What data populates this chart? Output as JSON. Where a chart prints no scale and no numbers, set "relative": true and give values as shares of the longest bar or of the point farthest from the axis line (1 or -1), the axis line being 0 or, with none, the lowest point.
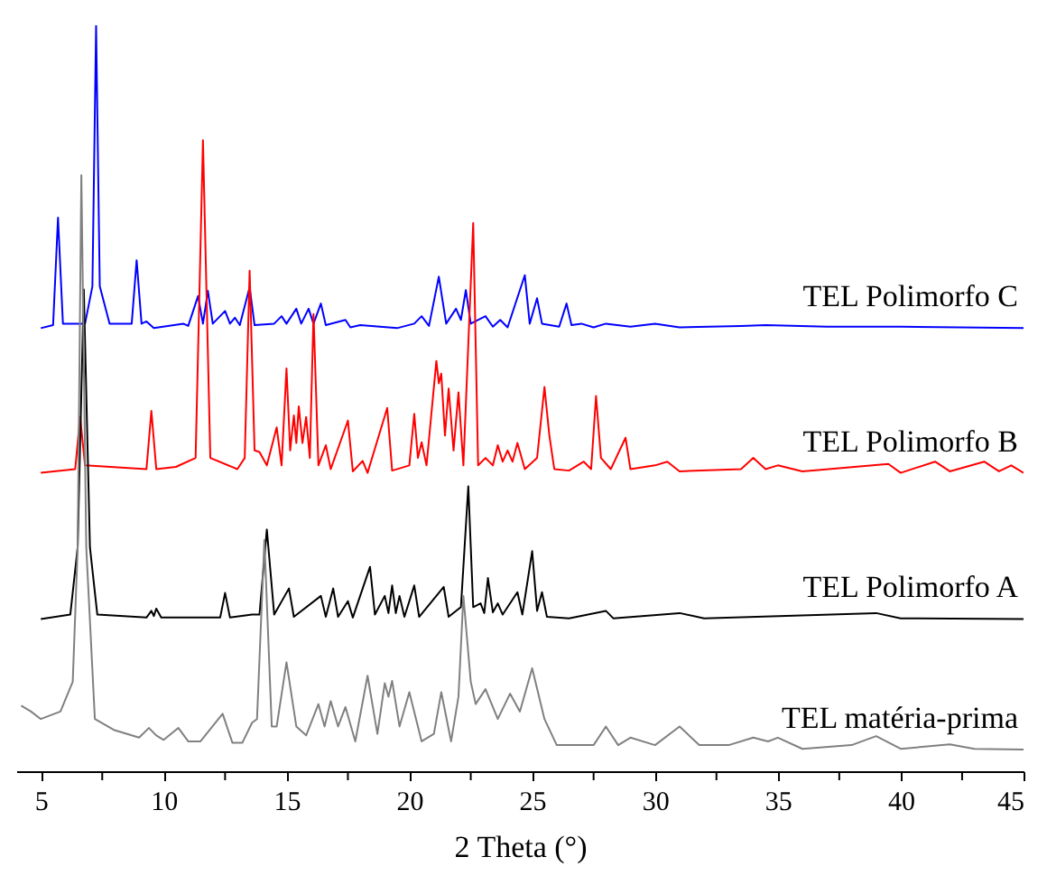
{
  "chart_data": {
    "type": "line",
    "relative": true,
    "xlabel": "2 Theta (°)",
    "xlim": [
      4,
      45
    ],
    "xticks": [
      5,
      {
        "value": 7.5,
        "label": null
      },
      10,
      {
        "value": 12.5,
        "label": null
      },
      15,
      {
        "value": 17.5,
        "label": null
      },
      20,
      {
        "value": 22.5,
        "label": null
      },
      25,
      {
        "value": 27.5,
        "label": null
      },
      30,
      {
        "value": 32.5,
        "label": null
      },
      35,
      {
        "value": 37.5,
        "label": null
      },
      40,
      {
        "value": 42.5,
        "label": null
      },
      45
    ],
    "legend": false,
    "series": [
      {
        "name": "TEL Polimorfo C",
        "color": "#0000ff",
        "x": [
          5,
          5.5,
          5.7,
          5.9,
          6.8,
          7.1,
          7.25,
          7.4,
          7.8,
          8.7,
          8.9,
          9.1,
          9.3,
          9.6,
          10.8,
          11.0,
          11.4,
          11.6,
          11.8,
          12.0,
          12.5,
          12.7,
          12.9,
          13.1,
          13.5,
          13.7,
          14.5,
          14.8,
          15.0,
          15.4,
          15.6,
          15.9,
          16.1,
          16.4,
          16.6,
          17.4,
          17.6,
          18.0,
          19.5,
          20.2,
          20.5,
          20.8,
          21.2,
          21.5,
          21.9,
          22.1,
          22.3,
          22.5,
          23.1,
          23.4,
          23.7,
          24.0,
          24.7,
          24.9,
          25.2,
          25.4,
          26.1,
          26.4,
          26.6,
          27.0,
          27.5,
          28.0,
          29.0,
          30.0,
          31,
          33.5,
          34.5,
          37,
          40,
          45
        ],
        "values": [
          0.594,
          0.598,
          0.742,
          0.6,
          0.6,
          0.65,
          1.0,
          0.65,
          0.6,
          0.6,
          0.685,
          0.6,
          0.603,
          0.594,
          0.6,
          0.597,
          0.637,
          0.6,
          0.644,
          0.6,
          0.617,
          0.6,
          0.608,
          0.598,
          0.649,
          0.598,
          0.6,
          0.61,
          0.6,
          0.62,
          0.6,
          0.62,
          0.6,
          0.627,
          0.598,
          0.605,
          0.595,
          0.598,
          0.594,
          0.6,
          0.61,
          0.597,
          0.663,
          0.6,
          0.62,
          0.605,
          0.645,
          0.6,
          0.61,
          0.596,
          0.605,
          0.595,
          0.665,
          0.6,
          0.634,
          0.6,
          0.596,
          0.627,
          0.598,
          0.6,
          0.595,
          0.6,
          0.596,
          0.6,
          0.595,
          0.597,
          0.598,
          0.596,
          0.596,
          0.594
        ]
      },
      {
        "name": "TEL Polimorfo B",
        "color": "#ff0000",
        "x": [
          5,
          6.4,
          6.6,
          6.8,
          9.3,
          9.5,
          9.7,
          10.5,
          11.3,
          11.6,
          11.9,
          13.0,
          13.3,
          13.5,
          13.7,
          13.9,
          14.2,
          14.6,
          14.8,
          15.0,
          15.15,
          15.3,
          15.4,
          15.5,
          15.65,
          15.8,
          15.95,
          16.1,
          16.3,
          16.6,
          16.8,
          17.5,
          17.7,
          18.1,
          18.3,
          19.1,
          19.3,
          20.0,
          20.2,
          20.35,
          20.5,
          20.7,
          21.1,
          21.2,
          21.3,
          21.45,
          21.6,
          21.8,
          22.0,
          22.2,
          22.6,
          22.8,
          23.1,
          23.4,
          23.6,
          23.8,
          24.0,
          24.2,
          24.4,
          24.7,
          25.2,
          25.5,
          25.7,
          25.9,
          26.5,
          27.1,
          27.4,
          27.6,
          27.8,
          28.2,
          28.8,
          29.0,
          30,
          30.5,
          31,
          33.5,
          34,
          34.5,
          35,
          36,
          39.5,
          40,
          41.4,
          42,
          43.4,
          44,
          44.5,
          45
        ],
        "values": [
          0.4,
          0.405,
          0.475,
          0.41,
          0.405,
          0.483,
          0.405,
          0.408,
          0.42,
          0.846,
          0.42,
          0.405,
          0.42,
          0.671,
          0.43,
          0.428,
          0.41,
          0.461,
          0.41,
          0.54,
          0.43,
          0.477,
          0.44,
          0.489,
          0.44,
          0.475,
          0.42,
          0.613,
          0.41,
          0.437,
          0.405,
          0.47,
          0.402,
          0.416,
          0.4,
          0.487,
          0.403,
          0.41,
          0.479,
          0.42,
          0.441,
          0.41,
          0.55,
          0.52,
          0.533,
          0.45,
          0.513,
          0.43,
          0.508,
          0.41,
          0.735,
          0.41,
          0.42,
          0.41,
          0.437,
          0.415,
          0.43,
          0.415,
          0.44,
          0.405,
          0.42,
          0.515,
          0.45,
          0.405,
          0.403,
          0.415,
          0.405,
          0.503,
          0.42,
          0.405,
          0.447,
          0.405,
          0.41,
          0.415,
          0.402,
          0.405,
          0.42,
          0.405,
          0.41,
          0.402,
          0.412,
          0.4,
          0.415,
          0.402,
          0.415,
          0.402,
          0.41,
          0.4
        ]
      },
      {
        "name": "TEL Polimorfo A",
        "color": "#000000",
        "x": [
          5,
          6.2,
          6.5,
          6.75,
          7.0,
          7.3,
          9.3,
          9.5,
          9.6,
          9.7,
          9.9,
          12.3,
          12.5,
          12.7,
          13.6,
          13.9,
          14.2,
          14.5,
          15.1,
          15.3,
          16.4,
          16.6,
          16.9,
          17.1,
          17.5,
          17.7,
          18.4,
          18.6,
          19.0,
          19.15,
          19.3,
          19.45,
          19.6,
          19.8,
          20.2,
          20.4,
          21.4,
          21.6,
          22.1,
          22.4,
          22.6,
          22.9,
          23.05,
          23.2,
          23.4,
          23.6,
          23.8,
          24.4,
          24.6,
          25.0,
          25.2,
          25.4,
          25.6,
          26.5,
          28.0,
          28.3,
          31,
          32,
          39,
          40,
          45
        ],
        "values": [
          0.204,
          0.21,
          0.3,
          0.646,
          0.3,
          0.21,
          0.206,
          0.215,
          0.208,
          0.218,
          0.206,
          0.206,
          0.239,
          0.206,
          0.21,
          0.21,
          0.324,
          0.21,
          0.245,
          0.207,
          0.235,
          0.207,
          0.245,
          0.207,
          0.228,
          0.206,
          0.274,
          0.21,
          0.235,
          0.212,
          0.249,
          0.212,
          0.235,
          0.207,
          0.249,
          0.207,
          0.247,
          0.207,
          0.22,
          0.382,
          0.22,
          0.225,
          0.212,
          0.259,
          0.213,
          0.225,
          0.21,
          0.24,
          0.21,
          0.295,
          0.215,
          0.24,
          0.207,
          0.205,
          0.215,
          0.205,
          0.212,
          0.205,
          0.212,
          0.205,
          0.204
        ]
      },
      {
        "name": "TEL matéria-prima",
        "color": "#808080",
        "x": [
          4.2,
          4.6,
          5.0,
          5.8,
          6.3,
          6.5,
          6.65,
          6.85,
          7.2,
          8.0,
          9.0,
          9.4,
          9.7,
          10.0,
          10.6,
          11.0,
          11.5,
          12.4,
          12.8,
          13.2,
          13.6,
          13.8,
          14.1,
          14.4,
          14.6,
          15.0,
          15.4,
          15.8,
          16.3,
          16.55,
          16.8,
          17.1,
          17.4,
          17.8,
          18.3,
          18.7,
          19.0,
          19.15,
          19.3,
          19.6,
          20.0,
          20.5,
          21.0,
          21.3,
          21.7,
          22.0,
          22.2,
          22.5,
          22.7,
          23.1,
          23.6,
          24.1,
          24.5,
          25.0,
          25.5,
          26.0,
          27.5,
          28.0,
          28.5,
          29.0,
          30,
          31.0,
          31.8,
          33,
          34,
          34.6,
          35,
          36,
          38,
          39,
          40,
          42,
          43,
          45
        ],
        "values": [
          0.088,
          0.08,
          0.07,
          0.08,
          0.12,
          0.3,
          0.799,
          0.3,
          0.07,
          0.055,
          0.045,
          0.058,
          0.048,
          0.042,
          0.058,
          0.04,
          0.04,
          0.077,
          0.038,
          0.038,
          0.065,
          0.07,
          0.31,
          0.06,
          0.06,
          0.146,
          0.06,
          0.048,
          0.09,
          0.06,
          0.094,
          0.06,
          0.086,
          0.04,
          0.128,
          0.05,
          0.118,
          0.1,
          0.121,
          0.06,
          0.106,
          0.04,
          0.05,
          0.106,
          0.04,
          0.1,
          0.235,
          0.12,
          0.09,
          0.11,
          0.07,
          0.104,
          0.08,
          0.138,
          0.07,
          0.035,
          0.035,
          0.06,
          0.035,
          0.045,
          0.035,
          0.06,
          0.035,
          0.035,
          0.045,
          0.04,
          0.045,
          0.03,
          0.035,
          0.047,
          0.03,
          0.036,
          0.03,
          0.029
        ]
      }
    ]
  }
}
